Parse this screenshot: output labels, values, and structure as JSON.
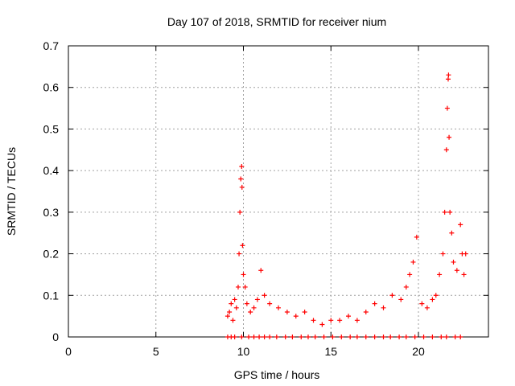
{
  "chart_data": {
    "type": "scatter",
    "title": "Day 107 of 2018, SRMTID for receiver nium",
    "xlabel": "GPS time / hours",
    "ylabel": "SRMTID / TECUs",
    "xlim": [
      0,
      24
    ],
    "ylim": [
      0,
      0.7
    ],
    "xticks": [
      0,
      5,
      10,
      15,
      20
    ],
    "xtick_labels": [
      "0",
      "5",
      "10",
      "15",
      "20"
    ],
    "yticks": [
      0,
      0.1,
      0.2,
      0.3,
      0.4,
      0.5,
      0.6,
      0.7
    ],
    "ytick_labels": [
      "0",
      "0.1",
      "0.2",
      "0.3",
      "0.4",
      "0.5",
      "0.6",
      "0.7"
    ],
    "grid": true,
    "marker": "+",
    "series": [
      {
        "name": "SRMTID",
        "color": "#ff0000",
        "points": [
          [
            9.1,
            0.05
          ],
          [
            9.2,
            0.06
          ],
          [
            9.3,
            0.08
          ],
          [
            9.4,
            0.04
          ],
          [
            9.5,
            0.09
          ],
          [
            9.6,
            0.07
          ],
          [
            9.7,
            0.12
          ],
          [
            9.75,
            0.2
          ],
          [
            9.8,
            0.3
          ],
          [
            9.85,
            0.38
          ],
          [
            9.9,
            0.41
          ],
          [
            9.92,
            0.36
          ],
          [
            9.95,
            0.22
          ],
          [
            10.0,
            0.15
          ],
          [
            10.1,
            0.12
          ],
          [
            10.2,
            0.08
          ],
          [
            10.4,
            0.06
          ],
          [
            10.6,
            0.07
          ],
          [
            10.8,
            0.09
          ],
          [
            11.0,
            0.16
          ],
          [
            11.2,
            0.1
          ],
          [
            11.5,
            0.08
          ],
          [
            12.0,
            0.07
          ],
          [
            12.5,
            0.06
          ],
          [
            13.0,
            0.05
          ],
          [
            13.5,
            0.06
          ],
          [
            14.0,
            0.04
          ],
          [
            14.5,
            0.03
          ],
          [
            15.0,
            0.04
          ],
          [
            15.5,
            0.04
          ],
          [
            16.0,
            0.05
          ],
          [
            16.5,
            0.04
          ],
          [
            17.0,
            0.06
          ],
          [
            17.5,
            0.08
          ],
          [
            18.0,
            0.07
          ],
          [
            18.5,
            0.1
          ],
          [
            19.0,
            0.09
          ],
          [
            19.3,
            0.12
          ],
          [
            19.5,
            0.15
          ],
          [
            19.7,
            0.18
          ],
          [
            19.9,
            0.24
          ],
          [
            20.2,
            0.08
          ],
          [
            20.5,
            0.07
          ],
          [
            20.8,
            0.09
          ],
          [
            21.0,
            0.1
          ],
          [
            21.2,
            0.15
          ],
          [
            21.4,
            0.2
          ],
          [
            21.5,
            0.3
          ],
          [
            21.6,
            0.45
          ],
          [
            21.65,
            0.55
          ],
          [
            21.7,
            0.62
          ],
          [
            21.72,
            0.63
          ],
          [
            21.75,
            0.48
          ],
          [
            21.8,
            0.3
          ],
          [
            21.9,
            0.25
          ],
          [
            22.0,
            0.18
          ],
          [
            22.2,
            0.16
          ],
          [
            22.4,
            0.27
          ],
          [
            22.5,
            0.2
          ],
          [
            22.6,
            0.15
          ],
          [
            22.7,
            0.2
          ]
        ],
        "zero_markers": [
          9.1,
          9.3,
          9.5,
          9.9,
          10.3,
          10.6,
          10.9,
          11.2,
          11.5,
          11.9,
          12.4,
          12.8,
          13.3,
          13.7,
          14.1,
          14.6,
          15.1,
          15.6,
          16.1,
          16.5,
          17.0,
          17.5,
          18.0,
          18.4,
          18.9,
          19.3,
          19.8,
          20.3,
          20.8,
          21.3,
          21.6,
          22.1,
          22.4
        ]
      }
    ]
  }
}
